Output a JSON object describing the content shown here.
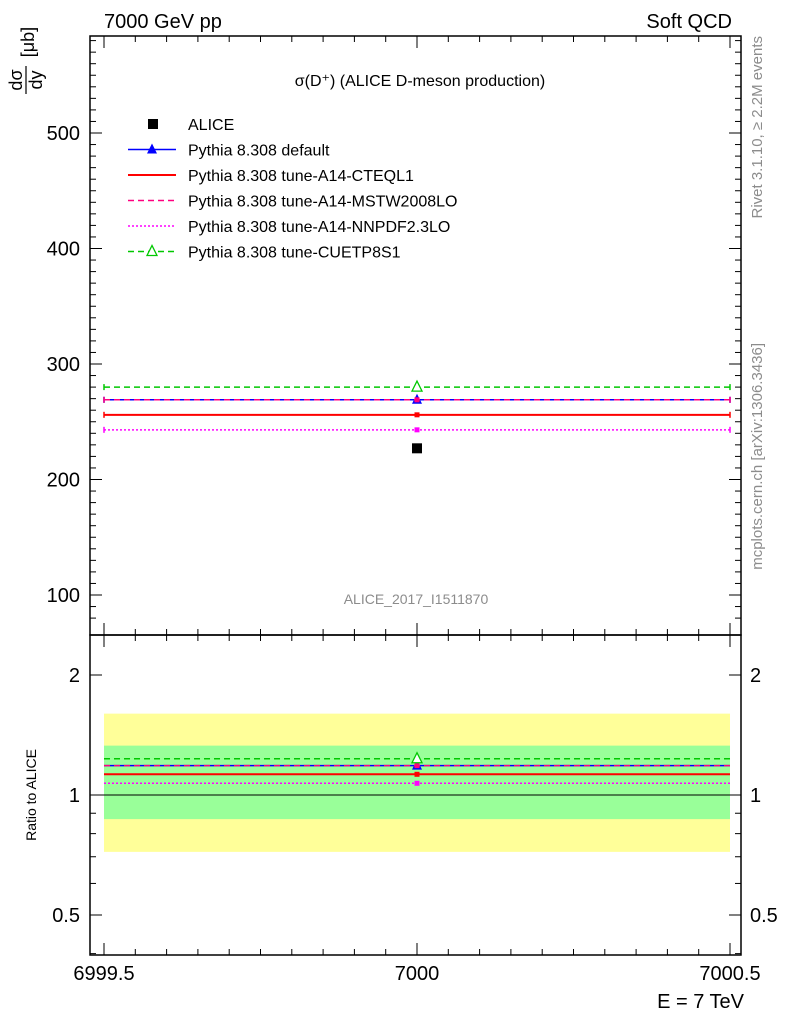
{
  "header": {
    "left": "7000 GeV pp",
    "right": "Soft QCD"
  },
  "side_text": {
    "rivet": "Rivet 3.1.10, ≥ 2.2M events",
    "mcplots": "mcplots.cern.ch [arXiv:1306.3436]"
  },
  "watermark": "ALICE_2017_I1511870",
  "chart_data": {
    "type": "line",
    "title": "σ(D⁺) (ALICE D-meson production)",
    "xlabel": "E = 7 TeV",
    "ylabel": "dσ/dy [μb]",
    "ratio_ylabel": "Ratio to ALICE",
    "xlim": [
      6999.5,
      7000.5
    ],
    "ylim": [
      70,
      585
    ],
    "ratio_ylim": [
      0.4,
      2.3
    ],
    "ratio_log": true,
    "x_ticks": [
      "6999.5",
      "7000",
      "7000.5"
    ],
    "y_ticks": [
      "100",
      "200",
      "300",
      "400",
      "500"
    ],
    "ratio_ticks": [
      "0.5",
      "1",
      "2"
    ],
    "legend_position": "top-left",
    "data": {
      "name": "ALICE",
      "x": 7000,
      "y": 227,
      "ratio_band_inner": [
        0.87,
        1.33
      ],
      "ratio_band_outer": [
        0.72,
        1.6
      ]
    },
    "series": [
      {
        "name": "Pythia 8.308 default",
        "value": 269,
        "ratio": 1.185,
        "color": "#0000ff",
        "dash": "solid",
        "marker": "triangle-filled"
      },
      {
        "name": "Pythia 8.308 tune-A14-CTEQL1",
        "value": 256,
        "ratio": 1.127,
        "color": "#ff0000",
        "dash": "solid",
        "marker": "square-small"
      },
      {
        "name": "Pythia 8.308 tune-A14-MSTW2008LO",
        "value": 269,
        "ratio": 1.185,
        "color": "#ff0080",
        "dash": "dashed",
        "marker": "square-small"
      },
      {
        "name": "Pythia 8.308 tune-A14-NNPDF2.3LO",
        "value": 243,
        "ratio": 1.07,
        "color": "#ff00ff",
        "dash": "dotted",
        "marker": "square-small"
      },
      {
        "name": "Pythia 8.308 tune-CUETP8S1",
        "value": 280,
        "ratio": 1.233,
        "color": "#00c800",
        "dash": "dashed",
        "marker": "triangle-open"
      }
    ]
  }
}
